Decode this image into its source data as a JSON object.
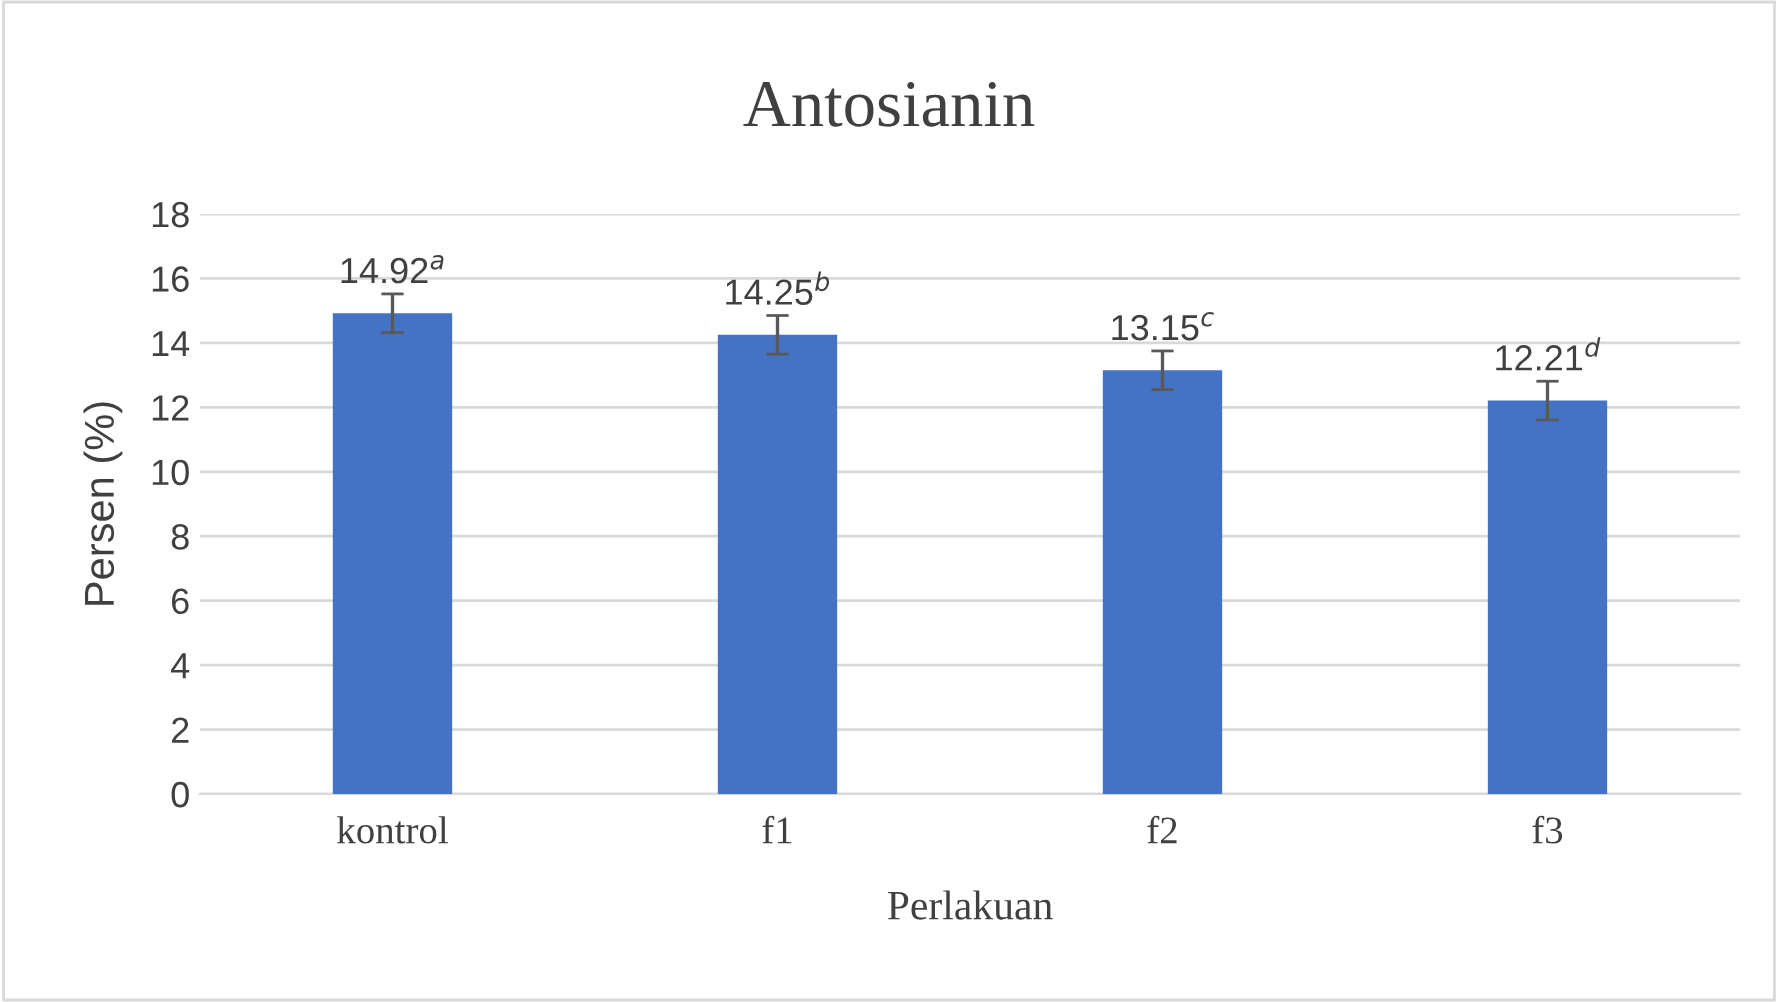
{
  "chart_data": {
    "type": "bar",
    "title": "Antosianin",
    "xlabel": "Perlakuan",
    "ylabel": "Persen (%)",
    "categories": [
      "kontrol",
      "f1",
      "f2",
      "f3"
    ],
    "values": [
      14.92,
      14.25,
      13.15,
      12.21
    ],
    "errors": [
      0.6,
      0.6,
      0.6,
      0.6
    ],
    "value_labels": [
      "14.92$^{a}$",
      "14.25$^{b}$",
      "13.15$^{c}$",
      "12.21$^{d}$"
    ],
    "color": "#4472c4",
    "ylim": [
      0,
      18
    ],
    "yticks": [
      0,
      2,
      4,
      6,
      8,
      10,
      12,
      14,
      16,
      18
    ],
    "grid": "y",
    "legend": false
  }
}
